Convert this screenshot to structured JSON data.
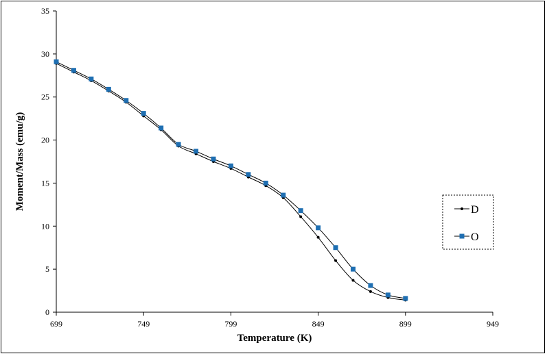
{
  "chart_data": {
    "type": "line",
    "title": "",
    "xlabel": "Temperature (K)",
    "ylabel": "Moment/Mass (emu/g)",
    "xlim": [
      699,
      949
    ],
    "ylim": [
      0,
      35
    ],
    "xticks": [
      699,
      749,
      799,
      849,
      899,
      949
    ],
    "yticks": [
      0,
      5,
      10,
      15,
      20,
      25,
      30,
      35
    ],
    "grid": false,
    "legend_position": "right",
    "series": [
      {
        "name": "D",
        "color": "#000000",
        "marker": "circle",
        "x": [
          699,
          709,
          719,
          729,
          739,
          749,
          759,
          769,
          779,
          789,
          799,
          809,
          819,
          829,
          839,
          849,
          859,
          869,
          879,
          889,
          899
        ],
        "y": [
          28.9,
          27.9,
          26.9,
          25.7,
          24.4,
          22.8,
          21.2,
          19.3,
          18.4,
          17.5,
          16.7,
          15.7,
          14.7,
          13.3,
          11.1,
          8.7,
          6.0,
          3.7,
          2.4,
          1.7,
          1.4
        ]
      },
      {
        "name": "O",
        "color": "#1F6FB2",
        "marker": "square",
        "x": [
          699,
          709,
          719,
          729,
          739,
          749,
          759,
          769,
          779,
          789,
          799,
          809,
          819,
          829,
          839,
          849,
          859,
          869,
          879,
          889,
          899
        ],
        "y": [
          29.1,
          28.1,
          27.1,
          25.9,
          24.6,
          23.1,
          21.4,
          19.5,
          18.7,
          17.8,
          17.0,
          16.0,
          15.0,
          13.6,
          11.8,
          9.8,
          7.5,
          5.0,
          3.1,
          2.0,
          1.6
        ]
      }
    ]
  }
}
